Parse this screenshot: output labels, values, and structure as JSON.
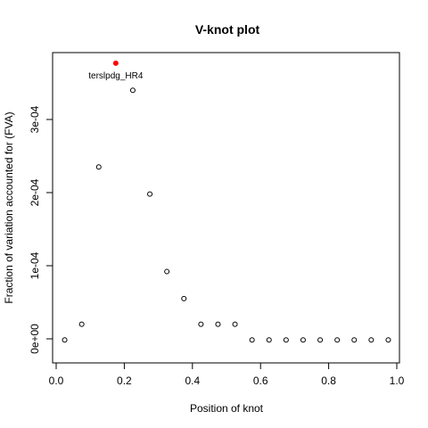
{
  "chart_data": {
    "type": "scatter",
    "title": "V-knot plot",
    "xlabel": "Position of knot",
    "ylabel": "Fraction of variation accounted for (FVA)",
    "xlim": [
      0,
      1
    ],
    "ylim": [
      -5e-06,
      0.000375
    ],
    "x_ticks": [
      0,
      0.2,
      0.4,
      0.6,
      0.8,
      1.0
    ],
    "x_tick_labels": [
      "0.0",
      "0.2",
      "0.4",
      "0.6",
      "0.8",
      "1.0"
    ],
    "y_ticks": [
      0,
      0.0001,
      0.0002,
      0.0003
    ],
    "y_tick_labels": [
      "0e+00",
      "1e-04",
      "2e-04",
      "3e-04"
    ],
    "grid": false,
    "points": [
      {
        "x": 0.025,
        "y": -1.5e-06
      },
      {
        "x": 0.075,
        "y": 2e-05
      },
      {
        "x": 0.125,
        "y": 0.000235
      },
      {
        "x": 0.175,
        "y": 0.000377,
        "highlight": true,
        "color": "#ff0000"
      },
      {
        "x": 0.225,
        "y": 0.00034
      },
      {
        "x": 0.275,
        "y": 0.000198
      },
      {
        "x": 0.325,
        "y": 9.2e-05
      },
      {
        "x": 0.375,
        "y": 5.5e-05
      },
      {
        "x": 0.425,
        "y": 2e-05
      },
      {
        "x": 0.475,
        "y": 2e-05
      },
      {
        "x": 0.525,
        "y": 2e-05
      },
      {
        "x": 0.575,
        "y": -1.5e-06
      },
      {
        "x": 0.625,
        "y": -1.5e-06
      },
      {
        "x": 0.675,
        "y": -1.5e-06
      },
      {
        "x": 0.725,
        "y": -1.5e-06
      },
      {
        "x": 0.775,
        "y": -1.5e-06
      },
      {
        "x": 0.825,
        "y": -1.5e-06
      },
      {
        "x": 0.875,
        "y": -1.5e-06
      },
      {
        "x": 0.925,
        "y": -1.5e-06
      },
      {
        "x": 0.975,
        "y": -1.5e-06
      }
    ],
    "annotations": [
      {
        "text": "terslpdg_HR4",
        "x": 0.175,
        "y": 0.000377
      }
    ]
  }
}
